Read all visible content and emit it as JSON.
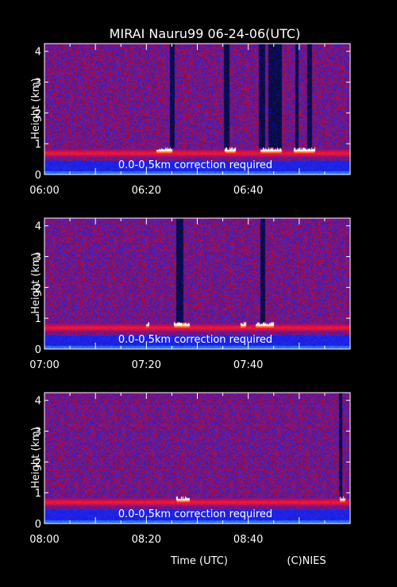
{
  "title": "MIRAI Nauru99 06-24-06(UTC)",
  "xlabel": "Time (UTC)",
  "credit": "(C)NIES",
  "colors": {
    "background": "#000000",
    "base": "#1a1ab4",
    "noise_red": "#b41414",
    "cloud_white": "#ffffff"
  },
  "chart_data": [
    {
      "type": "heatmap",
      "ylabel": "Height (km)",
      "yticks": [
        0,
        1,
        2,
        3,
        4
      ],
      "ylim": [
        0,
        4.25
      ],
      "xticks": [
        "06:00",
        "06:20",
        "06:40"
      ],
      "xlim_min": [
        0,
        60
      ],
      "tick_min": [
        0,
        20,
        40
      ],
      "note": "0.0-0.5km correction required",
      "boundary_layer_km": 0.7,
      "cloud_base_km": 0.8,
      "clouds": [
        [
          22,
          25
        ],
        [
          35.5,
          37.5
        ],
        [
          42.5,
          46.5
        ],
        [
          49,
          53
        ]
      ],
      "dark_columns": [
        [
          24.5,
          25.5
        ],
        [
          35.2,
          36.2
        ],
        [
          42,
          43.2
        ],
        [
          43.8,
          46.5
        ],
        [
          49.2,
          49.8
        ],
        [
          51.5,
          52.4
        ]
      ]
    },
    {
      "type": "heatmap",
      "ylabel": "Height (km)",
      "yticks": [
        0,
        1,
        2,
        3,
        4
      ],
      "ylim": [
        0,
        4.25
      ],
      "xticks": [
        "07:00",
        "07:20",
        "07:40"
      ],
      "xlim_min": [
        0,
        60
      ],
      "tick_min": [
        0,
        20,
        40
      ],
      "note": "0.0-0.5km correction required",
      "boundary_layer_km": 0.7,
      "cloud_base_km": 0.8,
      "clouds": [
        [
          20,
          20.5
        ],
        [
          25.5,
          28.5
        ],
        [
          38.5,
          39.5
        ],
        [
          41.5,
          45
        ]
      ],
      "dark_columns": [
        [
          25.8,
          27.2
        ],
        [
          42.3,
          43.2
        ]
      ]
    },
    {
      "type": "heatmap",
      "ylabel": "Height (km)",
      "yticks": [
        0,
        1,
        2,
        3,
        4
      ],
      "ylim": [
        0,
        4.25
      ],
      "xticks": [
        "08:00",
        "08:20",
        "08:40"
      ],
      "xlim_min": [
        0,
        60
      ],
      "tick_min": [
        0,
        20,
        40
      ],
      "note": "0.0-0.5km correction required",
      "boundary_layer_km": 0.7,
      "cloud_base_km": 0.8,
      "clouds": [
        [
          26,
          28.5
        ],
        [
          58,
          59
        ]
      ],
      "dark_columns": [
        [
          57.8,
          58.3
        ]
      ]
    }
  ]
}
